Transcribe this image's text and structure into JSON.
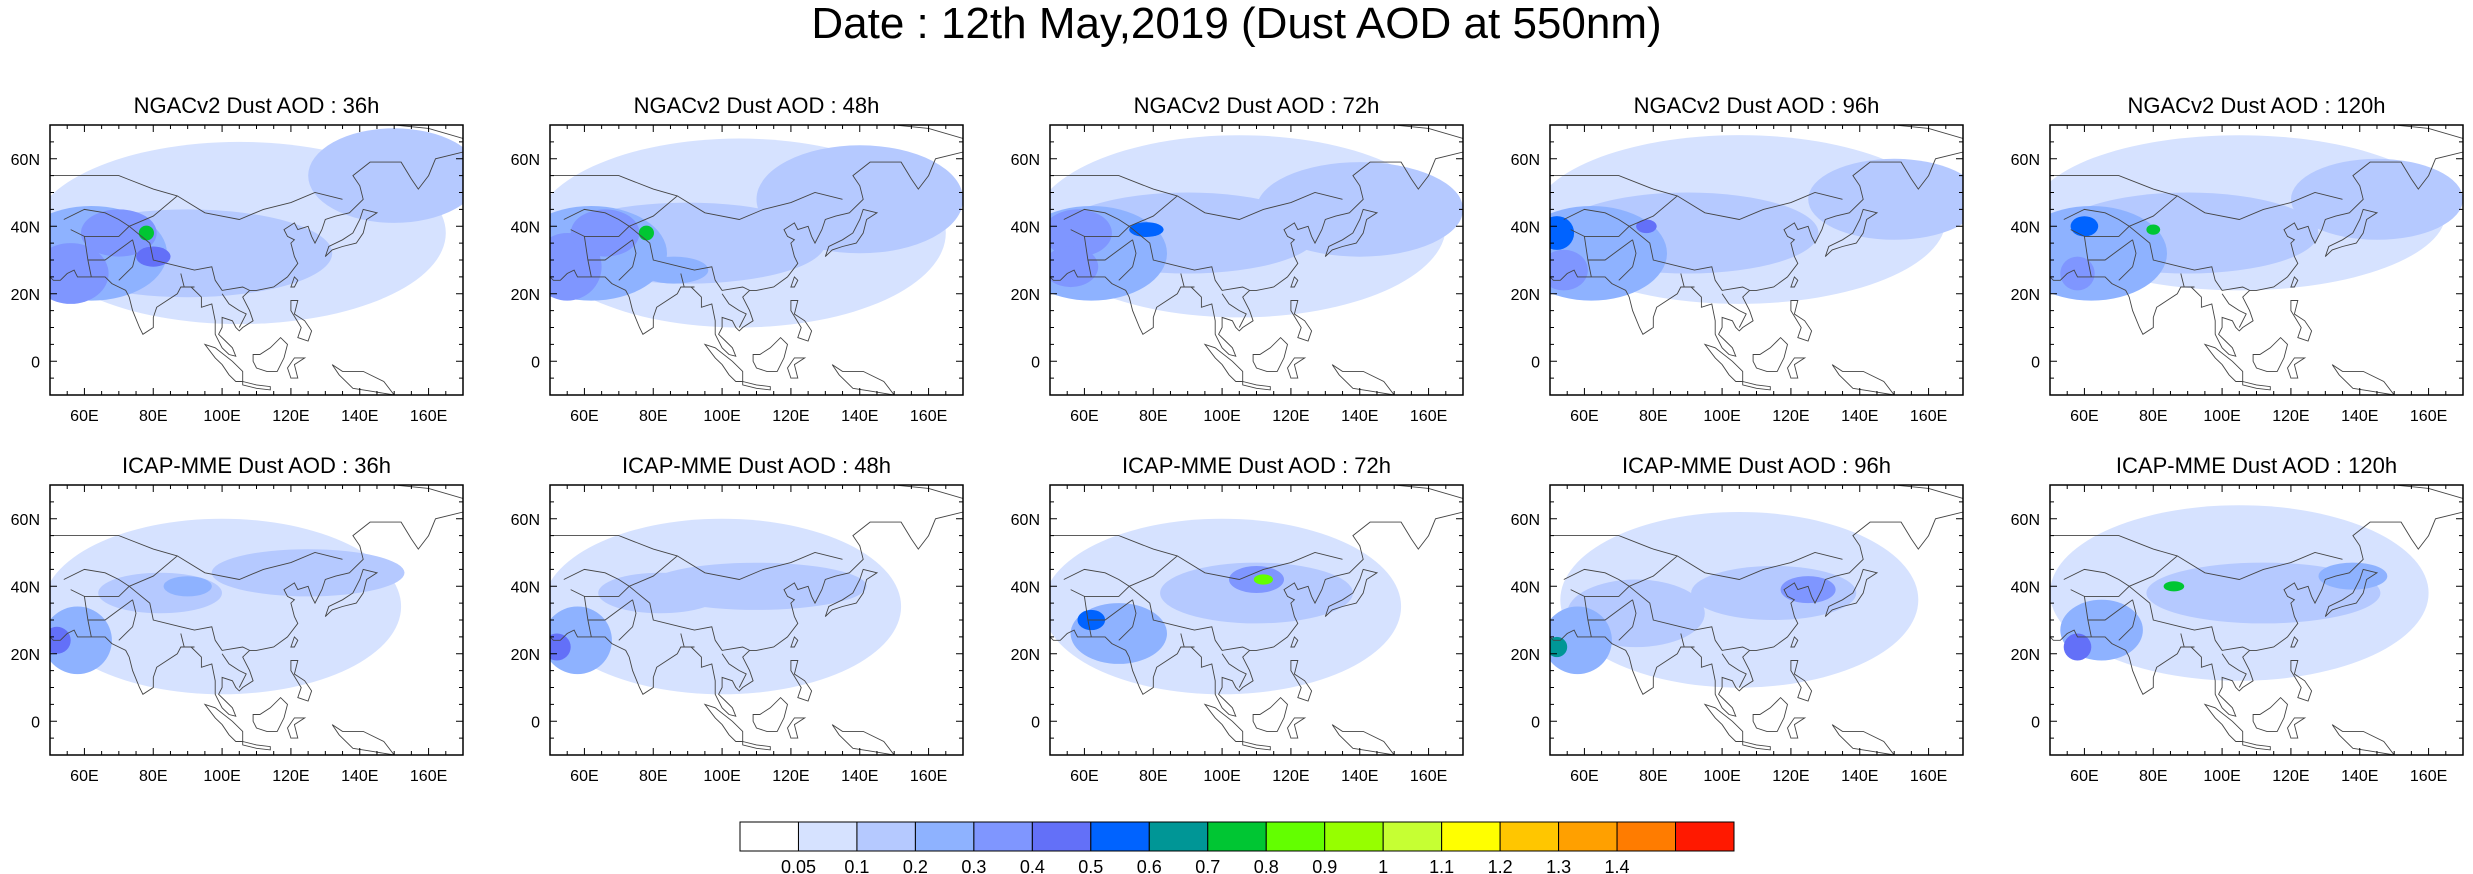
{
  "title": "Date : 12th May,2019 (Dust AOD at 550nm)",
  "panels": [
    {
      "title": "NGACv2 Dust AOD : 36h",
      "model": "NGACv2",
      "lead": "36h"
    },
    {
      "title": "NGACv2 Dust AOD : 48h",
      "model": "NGACv2",
      "lead": "48h"
    },
    {
      "title": "NGACv2 Dust AOD : 72h",
      "model": "NGACv2",
      "lead": "72h"
    },
    {
      "title": "NGACv2 Dust AOD : 96h",
      "model": "NGACv2",
      "lead": "96h"
    },
    {
      "title": "NGACv2 Dust AOD : 120h",
      "model": "NGACv2",
      "lead": "120h"
    },
    {
      "title": "ICAP-MME Dust AOD : 36h",
      "model": "ICAP-MME",
      "lead": "36h"
    },
    {
      "title": "ICAP-MME Dust AOD : 48h",
      "model": "ICAP-MME",
      "lead": "48h"
    },
    {
      "title": "ICAP-MME Dust AOD : 72h",
      "model": "ICAP-MME",
      "lead": "72h"
    },
    {
      "title": "ICAP-MME Dust AOD : 96h",
      "model": "ICAP-MME",
      "lead": "96h"
    },
    {
      "title": "ICAP-MME Dust AOD : 120h",
      "model": "ICAP-MME",
      "lead": "120h"
    }
  ],
  "x_ticks": [
    "60E",
    "80E",
    "100E",
    "120E",
    "140E",
    "160E"
  ],
  "y_ticks": [
    "60N",
    "40N",
    "20N",
    "0"
  ],
  "colorbar": {
    "labels": [
      "0.05",
      "0.1",
      "0.2",
      "0.3",
      "0.4",
      "0.5",
      "0.6",
      "0.7",
      "0.8",
      "0.9",
      "1",
      "1.1",
      "1.2",
      "1.3",
      "1.4"
    ],
    "colors": [
      "#ffffff",
      "#d6e2ff",
      "#b5c9ff",
      "#8eb2ff",
      "#7f96ff",
      "#6370f8",
      "#0063ff",
      "#009696",
      "#00c633",
      "#63ff00",
      "#96ff00",
      "#c6ff33",
      "#ffff00",
      "#ffc600",
      "#ffa000",
      "#ff7c00",
      "#ff1900"
    ]
  },
  "chart_data": {
    "type": "heatmap",
    "variable": "Dust AOD at 550nm",
    "date": "12th May,2019",
    "lon_range": [
      50,
      170
    ],
    "lat_range": [
      -10,
      70
    ],
    "color_levels": [
      0.05,
      0.1,
      0.2,
      0.3,
      0.4,
      0.5,
      0.6,
      0.7,
      0.8,
      0.9,
      1,
      1.1,
      1.2,
      1.3,
      1.4
    ],
    "level_colors": [
      "#ffffff",
      "#d6e2ff",
      "#b5c9ff",
      "#8eb2ff",
      "#7f96ff",
      "#6370f8",
      "#0063ff",
      "#009696",
      "#00c633",
      "#63ff00",
      "#96ff00",
      "#c6ff33",
      "#ffff00",
      "#ffc600",
      "#ffa000",
      "#ff7c00",
      "#ff1900"
    ],
    "fields": [
      {
        "model": "NGACv2",
        "lead": "36h",
        "peak_aod": 0.8,
        "peak_lon": 78,
        "peak_lat": 38
      },
      {
        "model": "NGACv2",
        "lead": "48h",
        "peak_aod": 0.8,
        "peak_lon": 78,
        "peak_lat": 38
      },
      {
        "model": "NGACv2",
        "lead": "72h",
        "peak_aod": 0.6,
        "peak_lon": 78,
        "peak_lat": 40
      },
      {
        "model": "NGACv2",
        "lead": "96h",
        "peak_aod": 0.7,
        "peak_lon": 52,
        "peak_lat": 40
      },
      {
        "model": "NGACv2",
        "lead": "120h",
        "peak_aod": 0.7,
        "peak_lon": 60,
        "peak_lat": 40
      },
      {
        "model": "ICAP-MME",
        "lead": "36h",
        "peak_aod": 0.5,
        "peak_lon": 52,
        "peak_lat": 24
      },
      {
        "model": "ICAP-MME",
        "lead": "48h",
        "peak_aod": 0.5,
        "peak_lon": 52,
        "peak_lat": 22
      },
      {
        "model": "ICAP-MME",
        "lead": "72h",
        "peak_aod": 0.9,
        "peak_lon": 110,
        "peak_lat": 42
      },
      {
        "model": "ICAP-MME",
        "lead": "96h",
        "peak_aod": 0.7,
        "peak_lon": 52,
        "peak_lat": 22
      },
      {
        "model": "ICAP-MME",
        "lead": "120h",
        "peak_aod": 0.8,
        "peak_lon": 86,
        "peak_lat": 40
      }
    ]
  }
}
